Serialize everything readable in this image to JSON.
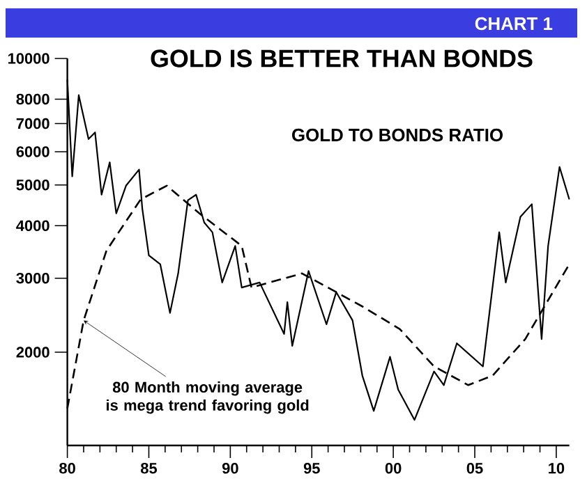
{
  "chart_data": {
    "type": "line",
    "title": "GOLD IS BETTER THAN BONDS",
    "subtitle": "GOLD TO BONDS RATIO",
    "annotations": [
      "CHART 1",
      {
        "text": "80 Month moving average is mega trend favoring gold",
        "x": 1981.0,
        "y": 2380
      }
    ],
    "log": "y",
    "xlim": [
      1980,
      2010.8
    ],
    "ylim": [
      1200,
      10000
    ],
    "xticks": [
      {
        "value": 1980,
        "label": "80"
      },
      {
        "value": 1981,
        "label": null
      },
      {
        "value": 1982,
        "label": null
      },
      {
        "value": 1983,
        "label": null
      },
      {
        "value": 1984,
        "label": null
      },
      {
        "value": 1985,
        "label": "85"
      },
      {
        "value": 1986,
        "label": null
      },
      {
        "value": 1987,
        "label": null
      },
      {
        "value": 1988,
        "label": null
      },
      {
        "value": 1989,
        "label": null
      },
      {
        "value": 1990,
        "label": "90"
      },
      {
        "value": 1991,
        "label": null
      },
      {
        "value": 1992,
        "label": null
      },
      {
        "value": 1993,
        "label": null
      },
      {
        "value": 1994,
        "label": null
      },
      {
        "value": 1995,
        "label": "95"
      },
      {
        "value": 1996,
        "label": null
      },
      {
        "value": 1997,
        "label": null
      },
      {
        "value": 1998,
        "label": null
      },
      {
        "value": 1999,
        "label": null
      },
      {
        "value": 2000,
        "label": "00"
      },
      {
        "value": 2001,
        "label": null
      },
      {
        "value": 2002,
        "label": null
      },
      {
        "value": 2003,
        "label": null
      },
      {
        "value": 2004,
        "label": null
      },
      {
        "value": 2005,
        "label": "05"
      },
      {
        "value": 2006,
        "label": null
      },
      {
        "value": 2007,
        "label": null
      },
      {
        "value": 2008,
        "label": null
      },
      {
        "value": 2009,
        "label": null
      },
      {
        "value": 2010,
        "label": "10"
      }
    ],
    "yticks": [
      2000,
      3000,
      4000,
      5000,
      6000,
      7000,
      8000,
      10000
    ],
    "series": [
      {
        "color": "#000000",
        "line_style": "solid",
        "x": [
          1980.0,
          1980.3,
          1980.7,
          1981.3,
          1981.7,
          1982.1,
          1982.6,
          1983.0,
          1983.6,
          1984.4,
          1984.6,
          1985.0,
          1985.7,
          1986.3,
          1986.8,
          1987.4,
          1987.9,
          1988.4,
          1988.9,
          1989.5,
          1990.3,
          1990.7,
          1991.8,
          1993.3,
          1993.5,
          1993.8,
          1994.8,
          1995.9,
          1996.5,
          1997.5,
          1998.1,
          1998.8,
          1999.8,
          2000.3,
          2001.3,
          2002.5,
          2003.1,
          2003.9,
          2005.5,
          2006.5,
          2006.9,
          2007.8,
          2008.5,
          2009.1,
          2009.5,
          2010.2,
          2010.8
        ],
        "values": [
          8900,
          5240,
          8180,
          6430,
          6670,
          4740,
          5660,
          4280,
          4980,
          5440,
          4390,
          3400,
          3240,
          2480,
          3080,
          4600,
          4740,
          4070,
          3860,
          2930,
          3580,
          2850,
          2930,
          2210,
          2630,
          2070,
          3120,
          2330,
          2780,
          2380,
          1760,
          1450,
          1950,
          1630,
          1380,
          1800,
          1670,
          2100,
          1850,
          3860,
          2930,
          4200,
          4500,
          2150,
          3580,
          5520,
          4620
        ]
      },
      {
        "color": "#000000",
        "line_style": "dashed",
        "x": [
          1980.0,
          1981.0,
          1982.4,
          1984.5,
          1986.1,
          1988.1,
          1990.7,
          1991.3,
          1994.4,
          1998.1,
          2000.4,
          2002.5,
          2004.6,
          2006.1,
          2008.1,
          2010.8
        ],
        "values": [
          1470,
          2380,
          3490,
          4620,
          4980,
          4280,
          3580,
          2850,
          3080,
          2570,
          2270,
          1850,
          1670,
          1760,
          2150,
          3240
        ]
      }
    ]
  }
}
